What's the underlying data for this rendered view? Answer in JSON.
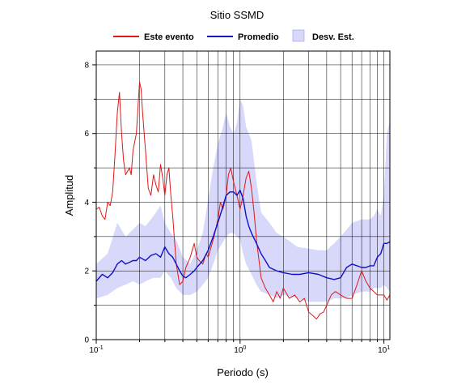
{
  "chart_data": {
    "type": "line",
    "title": "Sitio SSMD",
    "xlabel": "Periodo (s)",
    "ylabel": "Amplitud",
    "x_scale": "log",
    "xlim": [
      0.1,
      11
    ],
    "ylim": [
      0,
      8.4
    ],
    "grid": true,
    "legend_position": "top",
    "x_ticks": [
      {
        "value": 0.1,
        "base": "10",
        "exp": "-1"
      },
      {
        "value": 1,
        "base": "10",
        "exp": "0"
      },
      {
        "value": 10,
        "base": "10",
        "exp": "1"
      }
    ],
    "y_ticks": [
      0,
      2,
      4,
      6,
      8
    ],
    "legend": [
      {
        "label": "Este evento",
        "kind": "line",
        "color": "#e01818"
      },
      {
        "label": "Promedio",
        "kind": "line",
        "color": "#1010c8"
      },
      {
        "label": "Desv. Est.",
        "kind": "band",
        "color": "#d8d8fa"
      }
    ],
    "band": {
      "name": "Desv. Est.",
      "x": [
        0.1,
        0.12,
        0.14,
        0.16,
        0.18,
        0.2,
        0.22,
        0.25,
        0.28,
        0.3,
        0.33,
        0.36,
        0.4,
        0.45,
        0.5,
        0.55,
        0.6,
        0.65,
        0.7,
        0.75,
        0.8,
        0.85,
        0.9,
        0.95,
        1.0,
        1.05,
        1.1,
        1.2,
        1.3,
        1.4,
        1.6,
        1.8,
        2.0,
        2.5,
        3.0,
        3.5,
        4.0,
        4.5,
        5.0,
        5.5,
        6.0,
        7.0,
        8.0,
        8.5,
        9.0,
        9.5,
        10.0,
        10.5,
        11.0
      ],
      "upper": [
        2.2,
        2.5,
        3.4,
        3.0,
        3.2,
        3.4,
        3.3,
        3.6,
        3.9,
        3.4,
        3.1,
        2.9,
        2.4,
        2.2,
        2.6,
        3.1,
        4.1,
        5.0,
        5.7,
        6.1,
        6.6,
        6.2,
        6.0,
        6.3,
        7.0,
        6.8,
        6.2,
        5.8,
        4.6,
        3.7,
        3.4,
        3.1,
        3.0,
        2.7,
        2.65,
        2.6,
        2.6,
        2.8,
        3.0,
        3.2,
        3.4,
        3.5,
        3.5,
        3.6,
        3.8,
        3.6,
        4.2,
        6.0,
        6.4
      ],
      "lower": [
        1.2,
        1.3,
        1.5,
        1.6,
        1.7,
        1.6,
        1.7,
        1.8,
        1.8,
        2.0,
        1.8,
        1.5,
        1.3,
        1.3,
        1.4,
        1.6,
        1.8,
        2.2,
        2.6,
        2.8,
        3.0,
        3.1,
        3.1,
        3.0,
        2.9,
        2.5,
        2.2,
        1.9,
        1.6,
        1.4,
        1.3,
        1.2,
        1.3,
        1.2,
        1.1,
        1.1,
        1.1,
        1.2,
        1.2,
        1.2,
        1.3,
        1.4,
        1.4,
        1.5,
        1.5,
        1.5,
        1.6,
        1.5,
        1.4
      ]
    },
    "series": [
      {
        "name": "Este evento",
        "color": "#e01818",
        "x": [
          0.1,
          0.105,
          0.11,
          0.115,
          0.12,
          0.125,
          0.13,
          0.135,
          0.14,
          0.145,
          0.15,
          0.155,
          0.16,
          0.165,
          0.17,
          0.175,
          0.18,
          0.19,
          0.2,
          0.205,
          0.21,
          0.22,
          0.23,
          0.24,
          0.25,
          0.26,
          0.27,
          0.28,
          0.29,
          0.3,
          0.31,
          0.32,
          0.33,
          0.34,
          0.35,
          0.36,
          0.38,
          0.4,
          0.42,
          0.45,
          0.48,
          0.5,
          0.52,
          0.55,
          0.58,
          0.6,
          0.63,
          0.66,
          0.7,
          0.73,
          0.76,
          0.8,
          0.83,
          0.86,
          0.9,
          0.95,
          1.0,
          1.05,
          1.1,
          1.15,
          1.2,
          1.25,
          1.3,
          1.4,
          1.5,
          1.6,
          1.7,
          1.8,
          1.9,
          2.0,
          2.2,
          2.4,
          2.6,
          2.8,
          3.0,
          3.2,
          3.4,
          3.6,
          3.8,
          4.0,
          4.3,
          4.6,
          5.0,
          5.5,
          6.0,
          6.5,
          7.0,
          7.5,
          8.0,
          8.5,
          9.0,
          9.5,
          10.0,
          10.5,
          11.0
        ],
        "y": [
          3.8,
          3.85,
          3.6,
          3.5,
          4.0,
          3.9,
          4.3,
          5.4,
          6.6,
          7.2,
          6.0,
          5.2,
          4.8,
          4.9,
          5.0,
          4.8,
          5.5,
          6.0,
          7.5,
          7.3,
          6.6,
          5.5,
          4.4,
          4.2,
          4.8,
          4.5,
          4.3,
          5.1,
          4.7,
          4.2,
          4.8,
          5.0,
          4.2,
          3.6,
          2.9,
          2.2,
          1.6,
          1.7,
          2.1,
          2.4,
          2.8,
          2.4,
          2.3,
          2.2,
          2.5,
          2.4,
          2.7,
          3.0,
          3.5,
          4.0,
          3.8,
          4.2,
          4.8,
          5.0,
          4.6,
          4.2,
          3.8,
          4.2,
          4.7,
          4.9,
          4.4,
          3.7,
          2.9,
          1.8,
          1.5,
          1.3,
          1.1,
          1.4,
          1.2,
          1.5,
          1.2,
          1.3,
          1.1,
          1.2,
          0.8,
          0.7,
          0.6,
          0.75,
          0.8,
          1.0,
          1.3,
          1.4,
          1.3,
          1.2,
          1.2,
          1.6,
          2.0,
          1.7,
          1.5,
          1.4,
          1.3,
          1.3,
          1.3,
          1.15,
          1.3
        ]
      },
      {
        "name": "Promedio",
        "color": "#1010c8",
        "x": [
          0.1,
          0.11,
          0.12,
          0.13,
          0.14,
          0.15,
          0.16,
          0.17,
          0.18,
          0.19,
          0.2,
          0.22,
          0.24,
          0.26,
          0.28,
          0.3,
          0.32,
          0.34,
          0.36,
          0.38,
          0.4,
          0.42,
          0.45,
          0.48,
          0.5,
          0.55,
          0.6,
          0.65,
          0.7,
          0.75,
          0.8,
          0.85,
          0.9,
          0.95,
          1.0,
          1.05,
          1.1,
          1.15,
          1.2,
          1.3,
          1.4,
          1.5,
          1.6,
          1.8,
          2.0,
          2.3,
          2.6,
          3.0,
          3.5,
          4.0,
          4.5,
          5.0,
          5.5,
          6.0,
          6.5,
          7.0,
          7.5,
          8.0,
          8.5,
          9.0,
          9.5,
          10.0,
          10.5,
          11.0
        ],
        "y": [
          1.7,
          1.9,
          1.8,
          1.95,
          2.2,
          2.3,
          2.2,
          2.25,
          2.3,
          2.3,
          2.4,
          2.3,
          2.45,
          2.5,
          2.4,
          2.7,
          2.5,
          2.4,
          2.2,
          2.0,
          1.85,
          1.8,
          1.9,
          2.0,
          2.1,
          2.3,
          2.6,
          3.0,
          3.4,
          3.8,
          4.2,
          4.3,
          4.3,
          4.2,
          4.35,
          4.1,
          3.6,
          3.3,
          3.1,
          2.8,
          2.5,
          2.3,
          2.1,
          2.0,
          1.95,
          1.9,
          1.9,
          1.95,
          1.9,
          1.8,
          1.75,
          1.8,
          2.1,
          2.2,
          2.15,
          2.1,
          2.1,
          2.15,
          2.15,
          2.4,
          2.5,
          2.8,
          2.8,
          2.85
        ]
      }
    ]
  }
}
